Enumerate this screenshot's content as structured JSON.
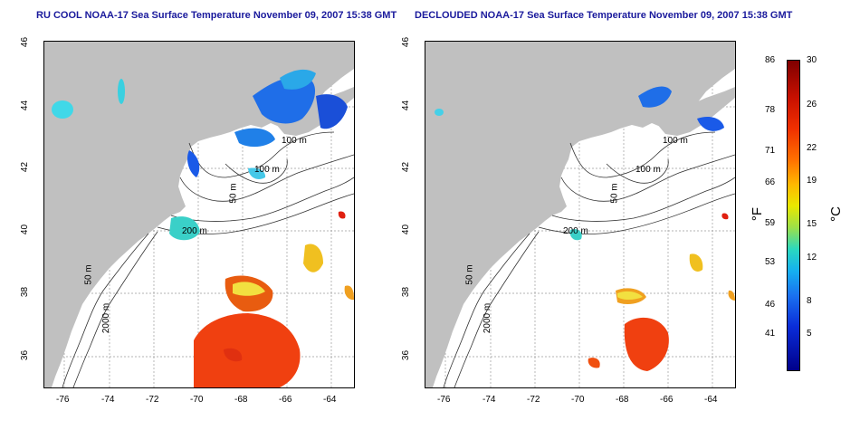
{
  "titles": {
    "left": "RU COOL NOAA-17 Sea Surface Temperature November 09, 2007 15:38 GMT",
    "right": "DECLOUDED NOAA-17 Sea Surface Temperature November 09, 2007 15:38 GMT"
  },
  "axes": {
    "x_ticks": [
      "-76",
      "-74",
      "-72",
      "-70",
      "-68",
      "-66",
      "-64"
    ],
    "y_ticks": [
      "46",
      "44",
      "42",
      "40",
      "38",
      "36"
    ]
  },
  "contour_labels": {
    "left": [
      "100 m",
      "100 m",
      "50 m",
      "200 m",
      "50 m",
      "2000 m"
    ],
    "right": [
      "100 m",
      "100 m",
      "50 m",
      "200 m",
      "50 m",
      "2000 m"
    ]
  },
  "colorbar": {
    "fahrenheit_unit": "°F",
    "celsius_unit": "°C",
    "fahrenheit_labels": [
      "86",
      "78",
      "71",
      "66",
      "59",
      "53",
      "46",
      "41"
    ],
    "celsius_labels": [
      "30",
      "26",
      "22",
      "19",
      "15",
      "12",
      "8",
      "5"
    ]
  },
  "colors": {
    "land": "#c0c0c0",
    "title": "#1a1a9c",
    "cold": "#1a6ae0",
    "warm": "#f04010"
  }
}
